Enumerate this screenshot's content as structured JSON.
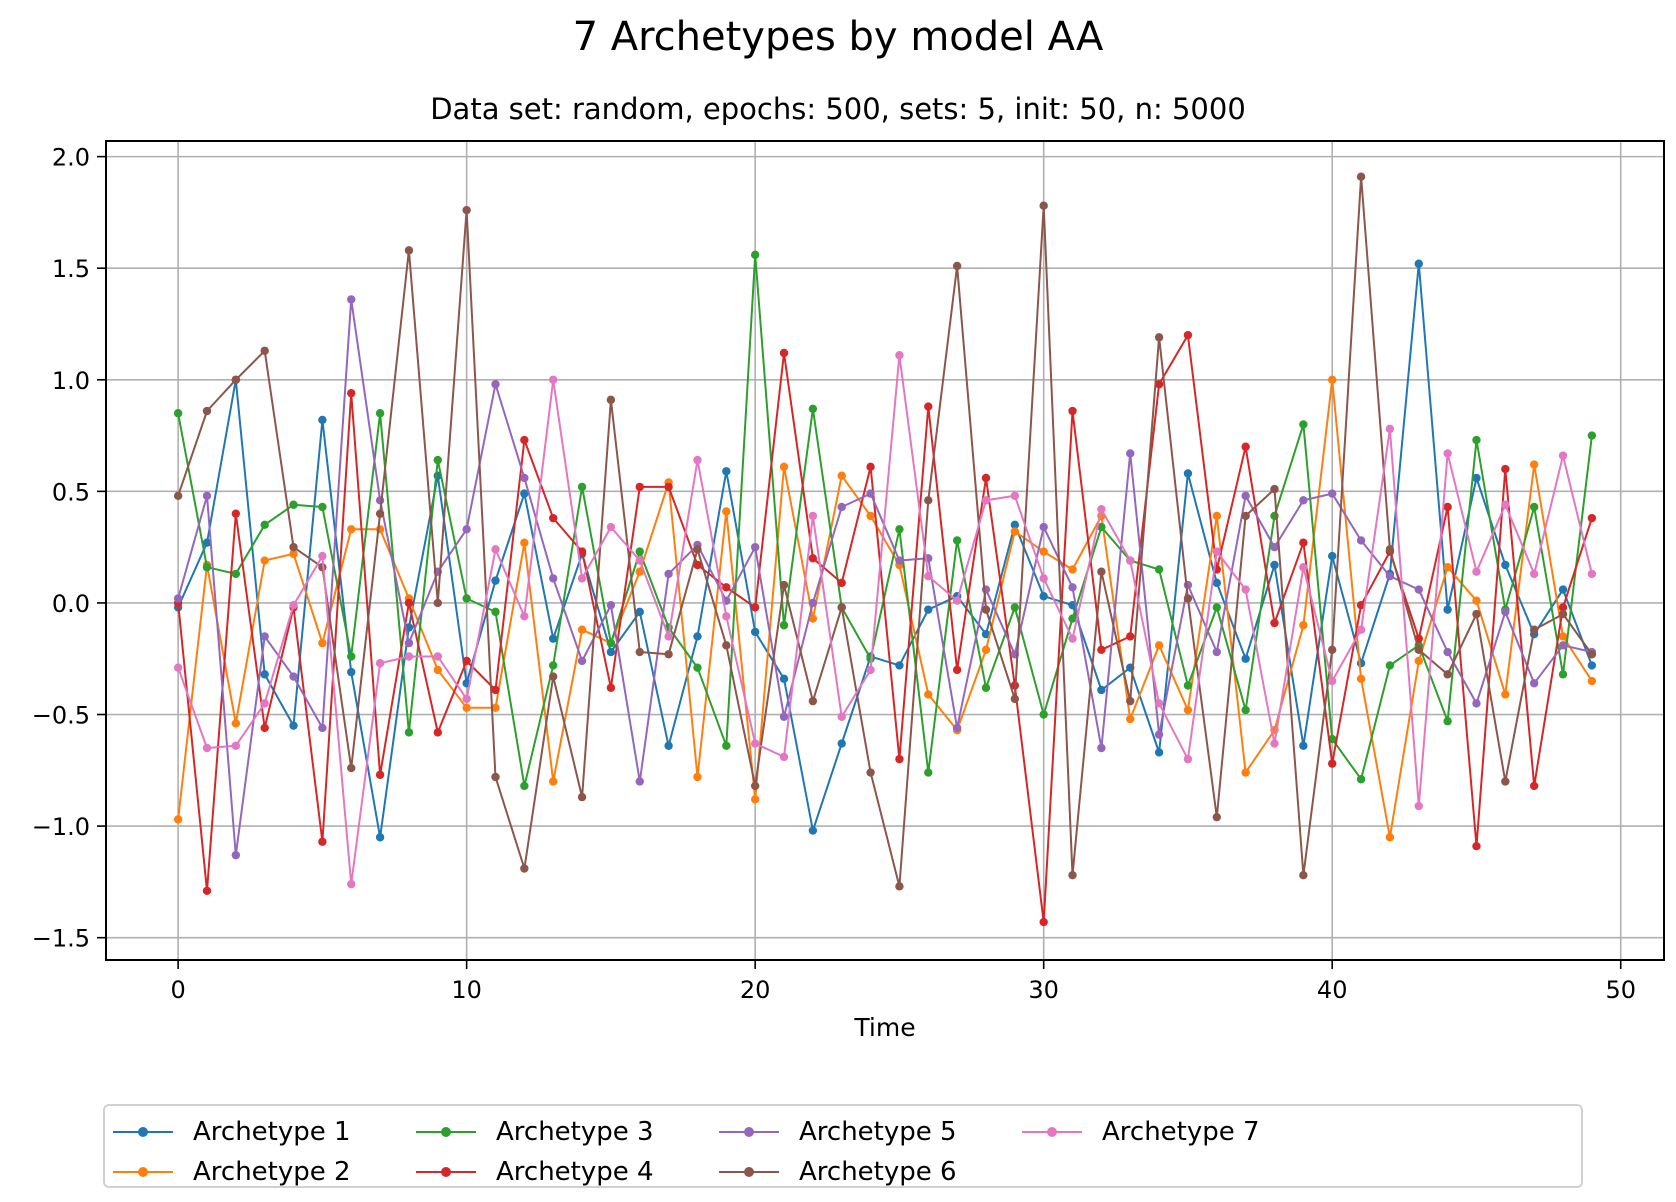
{
  "chart_data": {
    "type": "line",
    "title": "7 Archetypes by model AA",
    "subtitle": "Data set: random, epochs: 500, sets: 5, init: 50, n: 5000",
    "xlabel": "Time",
    "ylabel": "",
    "xlim": [
      -2.5,
      51.5
    ],
    "ylim": [
      -1.6,
      2.07
    ],
    "xticks": [
      0,
      10,
      20,
      30,
      40,
      50
    ],
    "yticks": [
      -1.5,
      -1.0,
      -0.5,
      0.0,
      0.5,
      1.0,
      1.5,
      2.0
    ],
    "xtick_labels": [
      "0",
      "10",
      "20",
      "30",
      "40",
      "50"
    ],
    "ytick_labels": [
      "−1.5",
      "−1.0",
      "−0.5",
      "0.0",
      "0.5",
      "1.0",
      "1.5",
      "2.0"
    ],
    "grid": true,
    "legend_position": "bottom-center",
    "x": [
      0,
      1,
      2,
      3,
      4,
      5,
      6,
      7,
      8,
      9,
      10,
      11,
      12,
      13,
      14,
      15,
      16,
      17,
      18,
      19,
      20,
      21,
      22,
      23,
      24,
      25,
      26,
      27,
      28,
      29,
      30,
      31,
      32,
      33,
      34,
      35,
      36,
      37,
      38,
      39,
      40,
      41,
      42,
      43,
      44,
      45,
      46,
      47,
      48,
      49
    ],
    "series": [
      {
        "name": "Archetype 1",
        "color": "#1f77b4",
        "values": [
          -0.02,
          0.27,
          1.0,
          -0.32,
          -0.55,
          0.82,
          -0.31,
          -1.05,
          -0.11,
          0.57,
          -0.36,
          0.1,
          0.49,
          -0.16,
          0.22,
          -0.22,
          -0.04,
          -0.64,
          -0.15,
          0.59,
          -0.13,
          -0.34,
          -1.02,
          -0.63,
          -0.24,
          -0.28,
          -0.03,
          0.03,
          -0.14,
          0.35,
          0.03,
          -0.01,
          -0.39,
          -0.29,
          -0.67,
          0.58,
          0.09,
          -0.25,
          0.17,
          -0.64,
          0.21,
          -0.27,
          0.13,
          1.52,
          -0.03,
          0.56,
          0.17,
          -0.14,
          0.06,
          -0.28
        ]
      },
      {
        "name": "Archetype 2",
        "color": "#ff7f0e",
        "values": [
          -0.97,
          0.17,
          -0.54,
          0.19,
          0.22,
          -0.18,
          0.33,
          0.33,
          0.02,
          -0.3,
          -0.47,
          -0.47,
          0.27,
          -0.8,
          -0.12,
          -0.18,
          0.14,
          0.54,
          -0.78,
          0.41,
          -0.88,
          0.61,
          -0.07,
          0.57,
          0.39,
          0.17,
          -0.41,
          -0.57,
          -0.21,
          0.32,
          0.23,
          0.15,
          0.39,
          -0.52,
          -0.19,
          -0.48,
          0.39,
          -0.76,
          -0.57,
          -0.1,
          1.0,
          -0.34,
          -1.05,
          -0.26,
          0.16,
          0.01,
          -0.41,
          0.62,
          -0.15,
          -0.35
        ]
      },
      {
        "name": "Archetype 3",
        "color": "#2ca02c",
        "values": [
          0.85,
          0.16,
          0.13,
          0.35,
          0.44,
          0.43,
          -0.24,
          0.85,
          -0.58,
          0.64,
          0.02,
          -0.04,
          -0.82,
          -0.28,
          0.52,
          -0.18,
          0.23,
          -0.11,
          -0.29,
          -0.64,
          1.56,
          -0.1,
          0.87,
          -0.02,
          -0.25,
          0.33,
          -0.76,
          0.28,
          -0.38,
          -0.02,
          -0.5,
          -0.07,
          0.34,
          0.19,
          0.15,
          -0.37,
          -0.02,
          -0.48,
          0.39,
          0.8,
          -0.61,
          -0.79,
          -0.28,
          -0.19,
          -0.53,
          0.73,
          -0.03,
          0.43,
          -0.32,
          0.75
        ]
      },
      {
        "name": "Archetype 4",
        "color": "#d62728",
        "values": [
          0.0,
          -1.29,
          0.4,
          -0.56,
          -0.02,
          -1.07,
          0.94,
          -0.77,
          0.0,
          -0.58,
          -0.26,
          -0.39,
          0.73,
          0.38,
          0.23,
          -0.38,
          0.52,
          0.52,
          0.17,
          0.07,
          -0.02,
          1.12,
          0.2,
          0.09,
          0.61,
          -0.7,
          0.88,
          -0.3,
          0.56,
          -0.37,
          -1.43,
          0.86,
          -0.21,
          -0.15,
          0.98,
          1.2,
          0.15,
          0.7,
          -0.09,
          0.27,
          -0.72,
          -0.01,
          0.23,
          -0.16,
          0.43,
          -1.09,
          0.6,
          -0.82,
          -0.02,
          0.38
        ]
      },
      {
        "name": "Archetype 5",
        "color": "#9467bd",
        "values": [
          0.02,
          0.48,
          -1.13,
          -0.15,
          -0.33,
          -0.56,
          1.36,
          0.46,
          -0.18,
          0.14,
          0.33,
          0.98,
          0.56,
          0.11,
          -0.26,
          -0.01,
          -0.8,
          0.13,
          0.26,
          0.01,
          0.25,
          -0.51,
          0.0,
          0.43,
          0.49,
          0.19,
          0.2,
          -0.56,
          0.06,
          -0.23,
          0.34,
          0.07,
          -0.65,
          0.67,
          -0.59,
          0.08,
          -0.22,
          0.48,
          0.25,
          0.46,
          0.49,
          0.28,
          0.12,
          0.06,
          -0.22,
          -0.45,
          -0.04,
          -0.36,
          -0.19,
          -0.22
        ]
      },
      {
        "name": "Archetype 6",
        "color": "#8c564b",
        "values": [
          0.48,
          0.86,
          1.0,
          1.13,
          0.25,
          0.16,
          -0.74,
          0.4,
          1.58,
          0.0,
          1.76,
          -0.78,
          -1.19,
          -0.33,
          -0.87,
          0.91,
          -0.22,
          -0.23,
          0.24,
          -0.19,
          -0.82,
          0.08,
          -0.44,
          -0.02,
          -0.76,
          -1.27,
          0.46,
          1.51,
          -0.03,
          -0.43,
          1.78,
          -1.22,
          0.14,
          -0.44,
          1.19,
          0.02,
          -0.96,
          0.39,
          0.51,
          -1.22,
          -0.21,
          1.91,
          0.24,
          -0.21,
          -0.32,
          -0.05,
          -0.8,
          -0.12,
          -0.05,
          -0.23
        ]
      },
      {
        "name": "Archetype 7",
        "color": "#e377c2",
        "values": [
          -0.29,
          -0.65,
          -0.64,
          -0.45,
          -0.01,
          0.21,
          -1.26,
          -0.27,
          -0.24,
          -0.24,
          -0.43,
          0.24,
          -0.06,
          1.0,
          0.11,
          0.34,
          0.19,
          -0.15,
          0.64,
          -0.06,
          -0.63,
          -0.69,
          0.39,
          -0.51,
          -0.3,
          1.11,
          0.12,
          0.01,
          0.46,
          0.48,
          0.11,
          -0.16,
          0.42,
          0.19,
          -0.45,
          -0.7,
          0.23,
          0.06,
          -0.63,
          0.16,
          -0.35,
          -0.12,
          0.78,
          -0.91,
          0.67,
          0.14,
          0.44,
          0.13,
          0.66,
          0.13
        ]
      }
    ]
  }
}
